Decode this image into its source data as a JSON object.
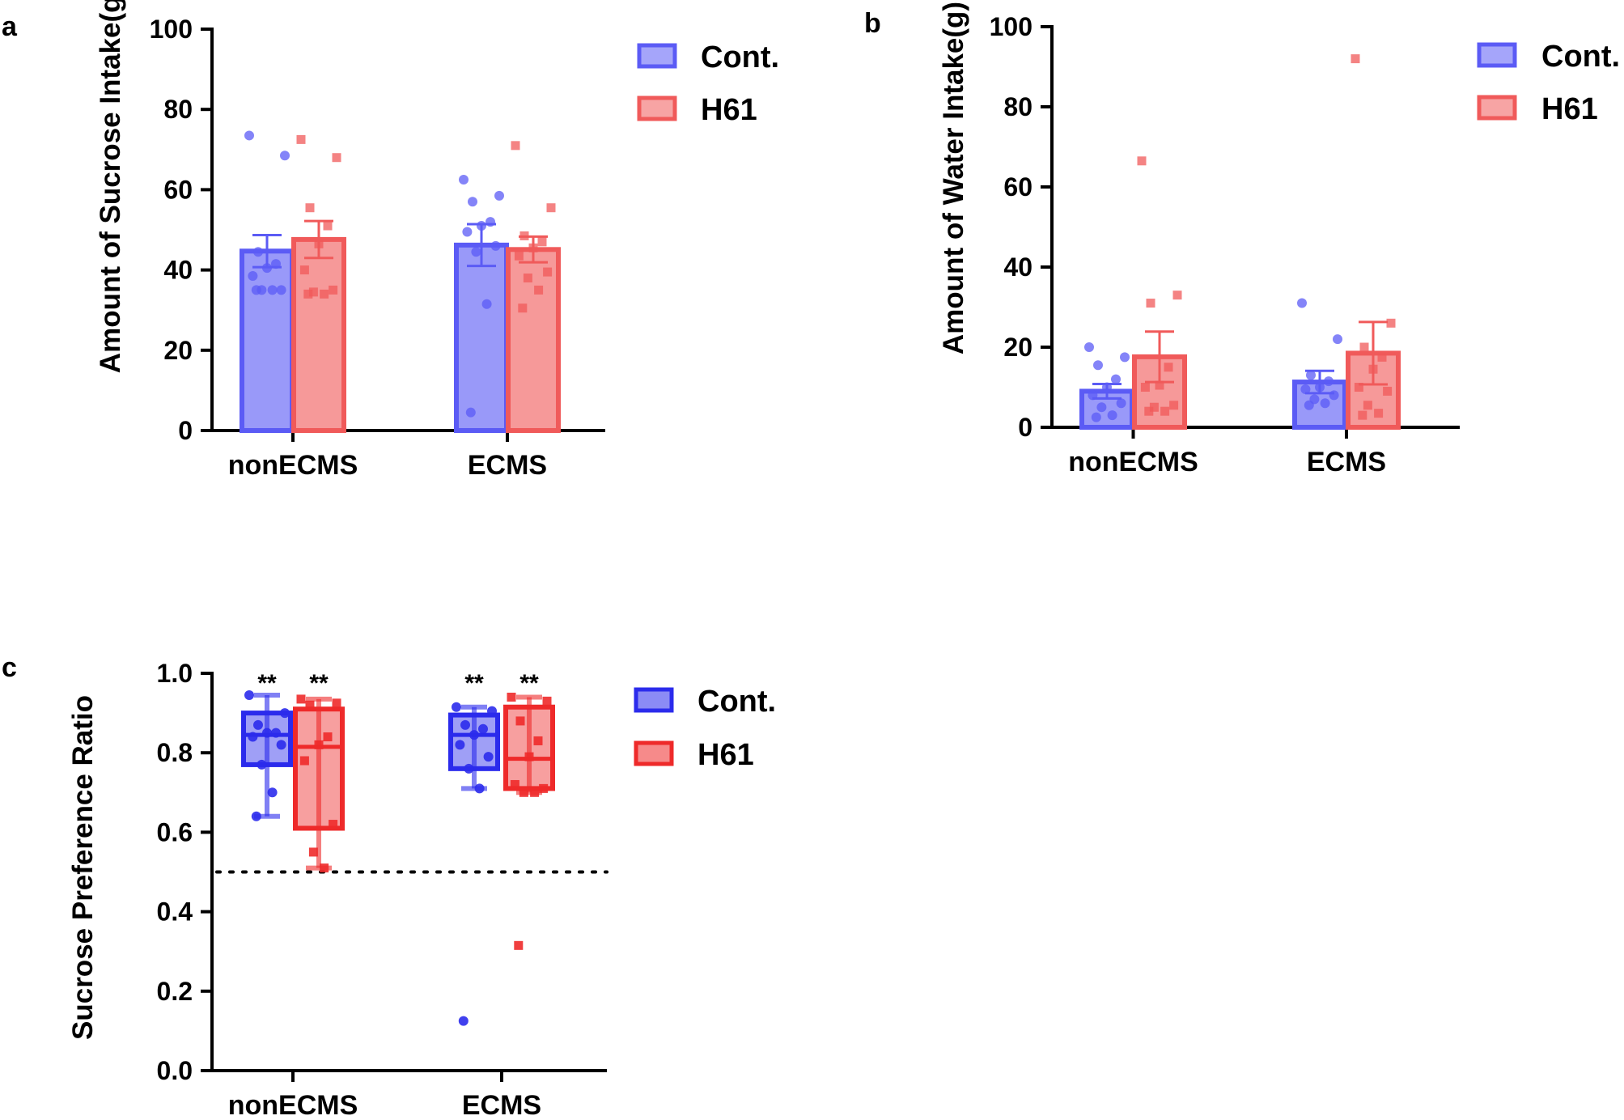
{
  "chart_data": [
    {
      "panel": "a",
      "type": "bar",
      "ylabel": "Amount of Sucrose Intake(g)",
      "xlabel": "",
      "ylim": [
        0,
        100
      ],
      "yticks": [
        "0",
        "20",
        "40",
        "60",
        "80",
        "100"
      ],
      "categories": [
        "nonECMS",
        "ECMS"
      ],
      "legend": [
        "Cont.",
        "H61"
      ],
      "legend_position": "top-right",
      "colors": {
        "Cont.": "#5b5bf5",
        "H61": "#f05a5a"
      },
      "series": [
        {
          "name": "Cont.",
          "values": [
            44.7,
            46.2
          ],
          "sem": [
            4.0,
            5.2
          ],
          "points": [
            [
              73.5,
              68.5,
              44.5,
              41.5,
              40.5,
              38.5,
              35.0,
              35.0,
              35.0,
              35.0
            ],
            [
              62.5,
              58.5,
              57.0,
              52.0,
              51.0,
              49.5,
              46.0,
              44.5,
              31.5,
              4.5
            ]
          ]
        },
        {
          "name": "H61",
          "values": [
            47.6,
            45.1
          ],
          "sem": [
            4.6,
            3.2
          ],
          "points": [
            [
              72.5,
              68.0,
              55.5,
              51.0,
              46.5,
              40.0,
              35.0,
              34.5,
              34.0,
              34.0
            ],
            [
              71.0,
              55.5,
              48.5,
              47.0,
              45.5,
              43.5,
              39.5,
              38.0,
              35.0,
              30.5
            ]
          ]
        }
      ]
    },
    {
      "panel": "b",
      "type": "bar",
      "ylabel": "Amount of Water Intake(g)",
      "xlabel": "",
      "ylim": [
        0,
        100
      ],
      "yticks": [
        "0",
        "20",
        "40",
        "60",
        "80",
        "100"
      ],
      "categories": [
        "nonECMS",
        "ECMS"
      ],
      "legend": [
        "Cont.",
        "H61"
      ],
      "legend_position": "top-right",
      "colors": {
        "Cont.": "#5b5bf5",
        "H61": "#f05a5a"
      },
      "series": [
        {
          "name": "Cont.",
          "values": [
            9.0,
            11.3
          ],
          "sem": [
            1.8,
            2.8
          ],
          "points": [
            [
              20.0,
              17.5,
              15.5,
              12.0,
              10.0,
              8.0,
              6.0,
              5.0,
              3.0,
              2.5
            ],
            [
              31.0,
              22.0,
              13.0,
              11.5,
              10.0,
              9.5,
              8.0,
              7.0,
              6.0,
              5.5
            ]
          ]
        },
        {
          "name": "H61",
          "values": [
            17.6,
            18.5
          ],
          "sem": [
            6.3,
            7.8
          ],
          "points": [
            [
              66.5,
              33.0,
              31.0,
              15.0,
              10.5,
              10.0,
              5.5,
              5.0,
              4.0,
              4.0
            ],
            [
              92.0,
              26.0,
              20.0,
              17.5,
              14.5,
              10.0,
              9.0,
              5.5,
              3.5,
              3.0
            ]
          ]
        }
      ]
    },
    {
      "panel": "c",
      "type": "box",
      "ylabel": "Sucrose Preference Ratio",
      "xlabel": "",
      "ylim": [
        0.0,
        1.0
      ],
      "yticks": [
        "0.0",
        "0.2",
        "0.4",
        "0.6",
        "0.8",
        "1.0"
      ],
      "reference_line": 0.5,
      "categories": [
        "nonECMS",
        "ECMS"
      ],
      "legend": [
        "Cont.",
        "H61"
      ],
      "legend_position": "top-right",
      "significance": "**",
      "colors": {
        "Cont.": "#2b2bec",
        "H61": "#ee2a2a"
      },
      "series": [
        {
          "name": "Cont.",
          "boxes": [
            {
              "min": 0.64,
              "q1": 0.77,
              "median": 0.845,
              "q3": 0.9,
              "max": 0.945
            },
            {
              "min": 0.71,
              "q1": 0.76,
              "median": 0.845,
              "q3": 0.895,
              "max": 0.915
            }
          ],
          "points": [
            [
              0.945,
              0.9,
              0.87,
              0.85,
              0.85,
              0.84,
              0.82,
              0.77,
              0.7,
              0.64
            ],
            [
              0.915,
              0.905,
              0.87,
              0.86,
              0.845,
              0.82,
              0.79,
              0.76,
              0.71,
              0.125
            ]
          ]
        },
        {
          "name": "H61",
          "boxes": [
            {
              "min": 0.51,
              "q1": 0.61,
              "median": 0.815,
              "q3": 0.91,
              "max": 0.935
            },
            {
              "min": 0.7,
              "q1": 0.71,
              "median": 0.785,
              "q3": 0.915,
              "max": 0.94
            }
          ],
          "points": [
            [
              0.935,
              0.925,
              0.92,
              0.84,
              0.82,
              0.78,
              0.62,
              0.55,
              0.51
            ],
            [
              0.94,
              0.93,
              0.88,
              0.83,
              0.79,
              0.72,
              0.71,
              0.7,
              0.7,
              0.315
            ]
          ]
        }
      ]
    }
  ]
}
